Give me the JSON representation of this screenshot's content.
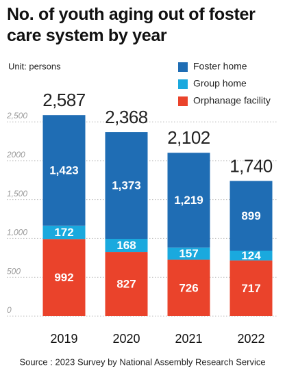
{
  "chart_data": {
    "type": "stacked-bar",
    "title": "No. of youth aging out of foster care system by year",
    "unit": "Unit: persons",
    "source": "Source : 2023 Survey by National Assembly Research Service",
    "categories": [
      "2019",
      "2020",
      "2021",
      "2022"
    ],
    "series": [
      {
        "name": "Foster home",
        "color": "#1f6db4",
        "values": [
          1423,
          1373,
          1219,
          899
        ],
        "value_labels": [
          "1,423",
          "1,373",
          "1,219",
          "899"
        ]
      },
      {
        "name": "Group home",
        "color": "#1aa9de",
        "values": [
          172,
          168,
          157,
          124
        ]
      },
      {
        "name": "Orphanage facility",
        "color": "#ea432b",
        "values": [
          992,
          827,
          726,
          717
        ]
      }
    ],
    "total_labels": [
      "2,587",
      "2,368",
      "2,102",
      "1,740"
    ],
    "ylim": [
      0,
      2800
    ],
    "yticks": [
      0,
      500,
      {
        "value": 1000,
        "label": "1,000"
      },
      {
        "value": 1500,
        "label": "1,500"
      },
      2000,
      {
        "value": 2500,
        "label": "2,500"
      }
    ],
    "grid": true
  }
}
